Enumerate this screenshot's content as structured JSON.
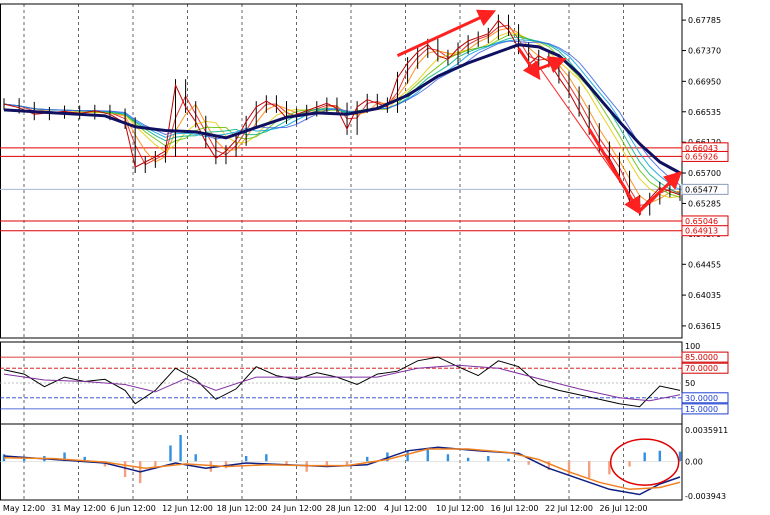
{
  "chart_data": {
    "type": "line",
    "price_axis": {
      "ticks": [
        "0.67785",
        "0.67370",
        "0.66950",
        "0.66535",
        "0.66120",
        "0.65700",
        "0.65285",
        "0.64870",
        "0.64455",
        "0.64035",
        "0.63615"
      ],
      "ylim": [
        0.6345,
        0.6795
      ]
    },
    "price_levels": [
      {
        "label": "0.66043",
        "value": 0.66043
      },
      {
        "label": "0.65926",
        "value": 0.65926
      },
      {
        "label": "0.65046",
        "value": 0.65046
      },
      {
        "label": "0.64913",
        "value": 0.64913
      }
    ],
    "current_price": {
      "label": "0.65477",
      "value": 0.65477
    },
    "x_labels": [
      "May 12:00",
      "31 May 12:00",
      "6 Jun 12:00",
      "12 Jun 12:00",
      "18 Jun 12:00",
      "24 Jun 12:00",
      "28 Jun 12:00",
      "4 Jul 12:00",
      "10 Jul 12:00",
      "16 Jul 12:00",
      "22 Jul 12:00",
      "26 Jul 12:00"
    ],
    "price_series": [
      {
        "x": 0,
        "y": 0.6664
      },
      {
        "x": 3,
        "y": 0.6659
      },
      {
        "x": 6,
        "y": 0.665
      },
      {
        "x": 9,
        "y": 0.6652
      },
      {
        "x": 12,
        "y": 0.6654
      },
      {
        "x": 15,
        "y": 0.6651
      },
      {
        "x": 18,
        "y": 0.6655
      },
      {
        "x": 21,
        "y": 0.665
      },
      {
        "x": 24,
        "y": 0.6638
      },
      {
        "x": 26,
        "y": 0.6578
      },
      {
        "x": 28,
        "y": 0.6585
      },
      {
        "x": 30,
        "y": 0.6592
      },
      {
        "x": 32,
        "y": 0.66
      },
      {
        "x": 34,
        "y": 0.669
      },
      {
        "x": 36,
        "y": 0.666
      },
      {
        "x": 38,
        "y": 0.664
      },
      {
        "x": 40,
        "y": 0.6612
      },
      {
        "x": 42,
        "y": 0.659
      },
      {
        "x": 44,
        "y": 0.66
      },
      {
        "x": 46,
        "y": 0.6615
      },
      {
        "x": 48,
        "y": 0.664
      },
      {
        "x": 50,
        "y": 0.666
      },
      {
        "x": 52,
        "y": 0.6668
      },
      {
        "x": 54,
        "y": 0.666
      },
      {
        "x": 56,
        "y": 0.6645
      },
      {
        "x": 58,
        "y": 0.665
      },
      {
        "x": 60,
        "y": 0.6655
      },
      {
        "x": 62,
        "y": 0.666
      },
      {
        "x": 64,
        "y": 0.6665
      },
      {
        "x": 66,
        "y": 0.6658
      },
      {
        "x": 68,
        "y": 0.663
      },
      {
        "x": 70,
        "y": 0.666
      },
      {
        "x": 72,
        "y": 0.667
      },
      {
        "x": 74,
        "y": 0.6665
      },
      {
        "x": 76,
        "y": 0.666
      },
      {
        "x": 78,
        "y": 0.67
      },
      {
        "x": 80,
        "y": 0.672
      },
      {
        "x": 82,
        "y": 0.6735
      },
      {
        "x": 84,
        "y": 0.6745
      },
      {
        "x": 86,
        "y": 0.673
      },
      {
        "x": 88,
        "y": 0.6725
      },
      {
        "x": 90,
        "y": 0.674
      },
      {
        "x": 92,
        "y": 0.675
      },
      {
        "x": 94,
        "y": 0.6755
      },
      {
        "x": 96,
        "y": 0.676
      },
      {
        "x": 98,
        "y": 0.6778
      },
      {
        "x": 100,
        "y": 0.6765
      },
      {
        "x": 102,
        "y": 0.674
      },
      {
        "x": 104,
        "y": 0.6718
      },
      {
        "x": 106,
        "y": 0.673
      },
      {
        "x": 108,
        "y": 0.6722
      },
      {
        "x": 110,
        "y": 0.67
      },
      {
        "x": 112,
        "y": 0.668
      },
      {
        "x": 114,
        "y": 0.6655
      },
      {
        "x": 116,
        "y": 0.663
      },
      {
        "x": 118,
        "y": 0.6605
      },
      {
        "x": 120,
        "y": 0.659
      },
      {
        "x": 122,
        "y": 0.6565
      },
      {
        "x": 124,
        "y": 0.6532
      },
      {
        "x": 126,
        "y": 0.652
      },
      {
        "x": 128,
        "y": 0.6535
      },
      {
        "x": 130,
        "y": 0.655
      },
      {
        "x": 132,
        "y": 0.6545
      },
      {
        "x": 134,
        "y": 0.654
      }
    ],
    "moving_average": [
      {
        "x": 0,
        "y": 0.6656
      },
      {
        "x": 10,
        "y": 0.6652
      },
      {
        "x": 20,
        "y": 0.6648
      },
      {
        "x": 26,
        "y": 0.6633
      },
      {
        "x": 32,
        "y": 0.6628
      },
      {
        "x": 38,
        "y": 0.6626
      },
      {
        "x": 44,
        "y": 0.6618
      },
      {
        "x": 50,
        "y": 0.6632
      },
      {
        "x": 56,
        "y": 0.6646
      },
      {
        "x": 62,
        "y": 0.6652
      },
      {
        "x": 68,
        "y": 0.665
      },
      {
        "x": 74,
        "y": 0.6658
      },
      {
        "x": 80,
        "y": 0.6676
      },
      {
        "x": 86,
        "y": 0.6702
      },
      {
        "x": 92,
        "y": 0.672
      },
      {
        "x": 98,
        "y": 0.6735
      },
      {
        "x": 102,
        "y": 0.6745
      },
      {
        "x": 106,
        "y": 0.6742
      },
      {
        "x": 110,
        "y": 0.673
      },
      {
        "x": 114,
        "y": 0.6705
      },
      {
        "x": 118,
        "y": 0.6672
      },
      {
        "x": 122,
        "y": 0.664
      },
      {
        "x": 126,
        "y": 0.661
      },
      {
        "x": 130,
        "y": 0.6585
      },
      {
        "x": 134,
        "y": 0.657
      }
    ],
    "oscillator": {
      "scale_labels": [
        "100",
        "85.0000",
        "70.0000",
        "50",
        "30.0000",
        "15.0000"
      ],
      "levels": [
        85,
        70,
        50,
        30,
        15
      ],
      "ylim": [
        0,
        100
      ],
      "main": [
        {
          "x": 0,
          "y": 68
        },
        {
          "x": 4,
          "y": 62
        },
        {
          "x": 8,
          "y": 45
        },
        {
          "x": 12,
          "y": 58
        },
        {
          "x": 16,
          "y": 52
        },
        {
          "x": 20,
          "y": 55
        },
        {
          "x": 24,
          "y": 40
        },
        {
          "x": 26,
          "y": 22
        },
        {
          "x": 30,
          "y": 40
        },
        {
          "x": 34,
          "y": 70
        },
        {
          "x": 38,
          "y": 55
        },
        {
          "x": 42,
          "y": 28
        },
        {
          "x": 46,
          "y": 42
        },
        {
          "x": 50,
          "y": 72
        },
        {
          "x": 54,
          "y": 60
        },
        {
          "x": 58,
          "y": 55
        },
        {
          "x": 62,
          "y": 64
        },
        {
          "x": 66,
          "y": 58
        },
        {
          "x": 70,
          "y": 48
        },
        {
          "x": 74,
          "y": 62
        },
        {
          "x": 78,
          "y": 66
        },
        {
          "x": 82,
          "y": 80
        },
        {
          "x": 86,
          "y": 85
        },
        {
          "x": 90,
          "y": 72
        },
        {
          "x": 94,
          "y": 60
        },
        {
          "x": 98,
          "y": 80
        },
        {
          "x": 102,
          "y": 72
        },
        {
          "x": 106,
          "y": 48
        },
        {
          "x": 110,
          "y": 40
        },
        {
          "x": 114,
          "y": 34
        },
        {
          "x": 118,
          "y": 28
        },
        {
          "x": 122,
          "y": 22
        },
        {
          "x": 126,
          "y": 18
        },
        {
          "x": 130,
          "y": 46
        },
        {
          "x": 134,
          "y": 40
        }
      ],
      "signal": [
        {
          "x": 0,
          "y": 62
        },
        {
          "x": 8,
          "y": 54
        },
        {
          "x": 16,
          "y": 52
        },
        {
          "x": 24,
          "y": 48
        },
        {
          "x": 30,
          "y": 38
        },
        {
          "x": 36,
          "y": 56
        },
        {
          "x": 42,
          "y": 40
        },
        {
          "x": 50,
          "y": 58
        },
        {
          "x": 58,
          "y": 58
        },
        {
          "x": 66,
          "y": 58
        },
        {
          "x": 74,
          "y": 58
        },
        {
          "x": 82,
          "y": 70
        },
        {
          "x": 90,
          "y": 74
        },
        {
          "x": 98,
          "y": 70
        },
        {
          "x": 106,
          "y": 56
        },
        {
          "x": 114,
          "y": 42
        },
        {
          "x": 122,
          "y": 30
        },
        {
          "x": 128,
          "y": 26
        },
        {
          "x": 134,
          "y": 34
        }
      ]
    },
    "macd": {
      "scale_labels": [
        "0.0035911",
        "0.00",
        "-0.003943"
      ],
      "ylim": [
        -0.0042,
        0.0038
      ],
      "histogram": [
        {
          "x": 0,
          "y": 0.0008
        },
        {
          "x": 4,
          "y": 0.0004
        },
        {
          "x": 8,
          "y": 0.0006
        },
        {
          "x": 12,
          "y": 0.001
        },
        {
          "x": 16,
          "y": 0.0005
        },
        {
          "x": 20,
          "y": -0.0006
        },
        {
          "x": 24,
          "y": -0.0018
        },
        {
          "x": 27,
          "y": -0.0025
        },
        {
          "x": 30,
          "y": -0.0008
        },
        {
          "x": 33,
          "y": 0.0018
        },
        {
          "x": 35,
          "y": 0.003
        },
        {
          "x": 38,
          "y": 0.0008
        },
        {
          "x": 41,
          "y": -0.0012
        },
        {
          "x": 44,
          "y": -0.0008
        },
        {
          "x": 48,
          "y": 0.0006
        },
        {
          "x": 52,
          "y": 0.0008
        },
        {
          "x": 56,
          "y": -0.0004
        },
        {
          "x": 60,
          "y": -0.0012
        },
        {
          "x": 64,
          "y": -0.0006
        },
        {
          "x": 68,
          "y": -0.0004
        },
        {
          "x": 72,
          "y": 0.0005
        },
        {
          "x": 76,
          "y": 0.001
        },
        {
          "x": 80,
          "y": 0.0012
        },
        {
          "x": 84,
          "y": 0.0015
        },
        {
          "x": 88,
          "y": 0.0008
        },
        {
          "x": 92,
          "y": 0.0004
        },
        {
          "x": 96,
          "y": 0.0006
        },
        {
          "x": 100,
          "y": 0.0003
        },
        {
          "x": 104,
          "y": -0.0004
        },
        {
          "x": 108,
          "y": -0.001
        },
        {
          "x": 112,
          "y": -0.0015
        },
        {
          "x": 116,
          "y": -0.0019
        },
        {
          "x": 120,
          "y": -0.0015
        },
        {
          "x": 124,
          "y": -0.0006
        },
        {
          "x": 127,
          "y": 0.001
        },
        {
          "x": 130,
          "y": 0.0012
        },
        {
          "x": 134,
          "y": 0.0011
        }
      ],
      "main": [
        {
          "x": 0,
          "y": 0.0006
        },
        {
          "x": 10,
          "y": 0.0002
        },
        {
          "x": 20,
          "y": -0.0002
        },
        {
          "x": 27,
          "y": -0.0012
        },
        {
          "x": 34,
          "y": -0.0002
        },
        {
          "x": 40,
          "y": -0.0008
        },
        {
          "x": 48,
          "y": -0.0002
        },
        {
          "x": 56,
          "y": -0.0004
        },
        {
          "x": 64,
          "y": -0.0006
        },
        {
          "x": 72,
          "y": -0.0004
        },
        {
          "x": 80,
          "y": 0.0012
        },
        {
          "x": 86,
          "y": 0.0016
        },
        {
          "x": 94,
          "y": 0.0012
        },
        {
          "x": 102,
          "y": 0.0009
        },
        {
          "x": 108,
          "y": -0.0008
        },
        {
          "x": 114,
          "y": -0.002
        },
        {
          "x": 120,
          "y": -0.0032
        },
        {
          "x": 126,
          "y": -0.0038
        },
        {
          "x": 130,
          "y": -0.0026
        },
        {
          "x": 134,
          "y": -0.0018
        }
      ],
      "signal": [
        {
          "x": 0,
          "y": 0.0004
        },
        {
          "x": 10,
          "y": 0.0003
        },
        {
          "x": 20,
          "y": -0.0001
        },
        {
          "x": 28,
          "y": -0.0008
        },
        {
          "x": 36,
          "y": -0.0003
        },
        {
          "x": 44,
          "y": -0.0006
        },
        {
          "x": 52,
          "y": -0.0004
        },
        {
          "x": 60,
          "y": -0.0005
        },
        {
          "x": 68,
          "y": -0.0005
        },
        {
          "x": 76,
          "y": 0.0002
        },
        {
          "x": 84,
          "y": 0.0014
        },
        {
          "x": 92,
          "y": 0.0014
        },
        {
          "x": 100,
          "y": 0.001
        },
        {
          "x": 106,
          "y": 0.0002
        },
        {
          "x": 112,
          "y": -0.0012
        },
        {
          "x": 118,
          "y": -0.0024
        },
        {
          "x": 124,
          "y": -0.0032
        },
        {
          "x": 130,
          "y": -0.003
        },
        {
          "x": 134,
          "y": -0.0024
        }
      ]
    }
  }
}
